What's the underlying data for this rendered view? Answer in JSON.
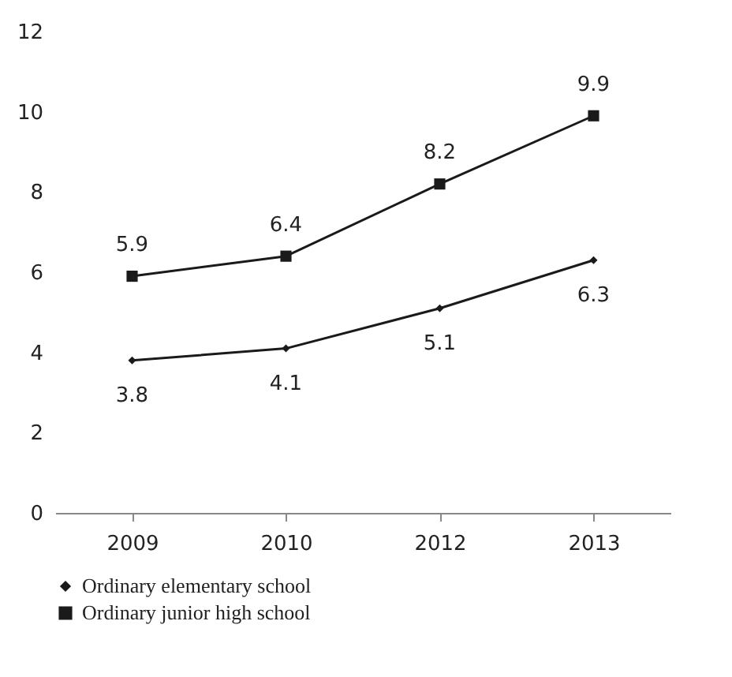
{
  "chart_data": {
    "type": "line",
    "categories": [
      "2009",
      "2010",
      "2012",
      "2013"
    ],
    "series": [
      {
        "name": "Ordinary elementary school",
        "color": "#1a1a1a",
        "marker": "diamond",
        "values": [
          3.8,
          4.1,
          5.1,
          6.3
        ]
      },
      {
        "name": "Ordinary junior high school",
        "color": "#1a1a1a",
        "marker": "square",
        "values": [
          5.9,
          6.4,
          8.2,
          9.9
        ]
      }
    ],
    "ylim": [
      0,
      12
    ],
    "yticks": [
      0,
      2,
      4,
      6,
      8,
      10,
      12
    ],
    "grid": false,
    "legend": "bottom",
    "data_labels": true
  }
}
